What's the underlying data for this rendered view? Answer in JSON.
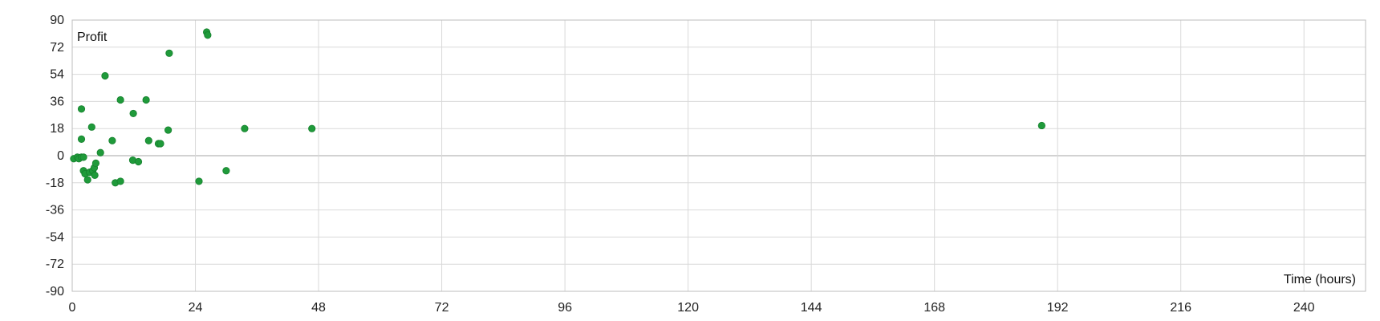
{
  "chart_data": {
    "type": "scatter",
    "title": "",
    "xlabel": "Time (hours)",
    "ylabel": "Profit",
    "xlim": [
      0,
      252
    ],
    "ylim": [
      -90,
      90
    ],
    "xticks": [
      0,
      24,
      48,
      72,
      96,
      120,
      144,
      168,
      192,
      216,
      240
    ],
    "yticks": [
      90,
      72,
      54,
      36,
      18,
      0,
      -18,
      -36,
      -54,
      -72,
      -90
    ],
    "grid": true,
    "legend": "none",
    "series": [
      {
        "color": "#1f9a3a",
        "points": [
          {
            "x": 0.3,
            "y": -2
          },
          {
            "x": 1.0,
            "y": -1
          },
          {
            "x": 1.3,
            "y": -2
          },
          {
            "x": 1.8,
            "y": -1
          },
          {
            "x": 2.2,
            "y": -1
          },
          {
            "x": 1.8,
            "y": 31
          },
          {
            "x": 1.8,
            "y": 11
          },
          {
            "x": 2.2,
            "y": -10
          },
          {
            "x": 2.5,
            "y": -12
          },
          {
            "x": 3.0,
            "y": -16
          },
          {
            "x": 3.4,
            "y": -11
          },
          {
            "x": 3.8,
            "y": 19
          },
          {
            "x": 4.0,
            "y": -10
          },
          {
            "x": 4.3,
            "y": -8
          },
          {
            "x": 4.4,
            "y": -13
          },
          {
            "x": 4.6,
            "y": -5
          },
          {
            "x": 5.5,
            "y": 2
          },
          {
            "x": 6.4,
            "y": 53
          },
          {
            "x": 7.8,
            "y": 10
          },
          {
            "x": 8.4,
            "y": -18
          },
          {
            "x": 9.4,
            "y": -17
          },
          {
            "x": 9.4,
            "y": 37
          },
          {
            "x": 11.8,
            "y": -3
          },
          {
            "x": 11.9,
            "y": 28
          },
          {
            "x": 12.9,
            "y": -4
          },
          {
            "x": 14.4,
            "y": 37
          },
          {
            "x": 14.9,
            "y": 10
          },
          {
            "x": 16.8,
            "y": 8
          },
          {
            "x": 17.2,
            "y": 8
          },
          {
            "x": 18.7,
            "y": 17
          },
          {
            "x": 18.9,
            "y": 68
          },
          {
            "x": 24.7,
            "y": -17
          },
          {
            "x": 26.2,
            "y": 82
          },
          {
            "x": 26.4,
            "y": 80
          },
          {
            "x": 30.0,
            "y": -10
          },
          {
            "x": 33.6,
            "y": 18
          },
          {
            "x": 46.7,
            "y": 18
          },
          {
            "x": 188.9,
            "y": 20
          }
        ]
      }
    ]
  }
}
